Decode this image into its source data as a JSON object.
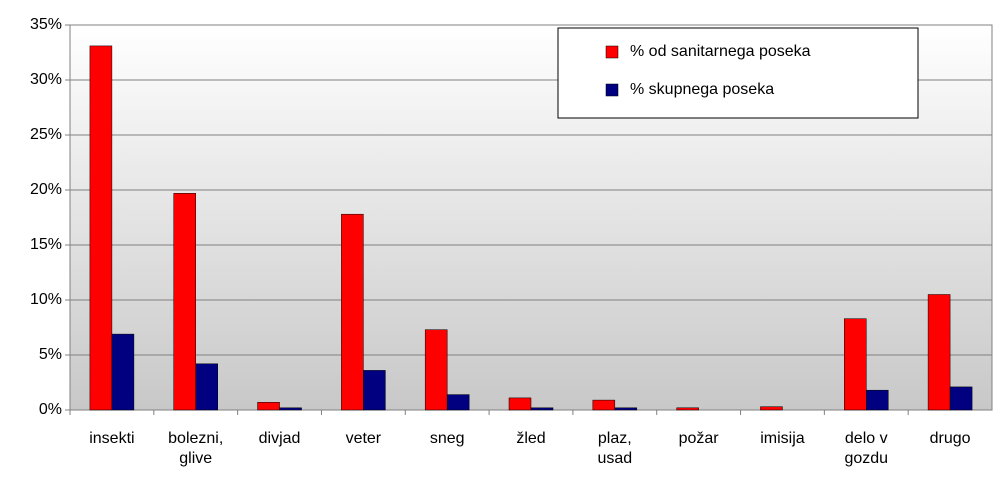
{
  "chart_data": {
    "type": "bar",
    "categories": [
      "insekti",
      "bolezni, glive",
      "divjad",
      "veter",
      "sneg",
      "žled",
      "plaz, usad",
      "požar",
      "imisija",
      "delo v gozdu",
      "drugo"
    ],
    "series": [
      {
        "name": "% od sanitarnega poseka",
        "color": "#ff0000",
        "values": [
          33.1,
          19.7,
          0.7,
          17.8,
          7.3,
          1.1,
          0.9,
          0.2,
          0.3,
          8.3,
          10.5
        ]
      },
      {
        "name": "% skupnega poseka",
        "color": "#000080",
        "values": [
          6.9,
          4.2,
          0.2,
          3.6,
          1.4,
          0.2,
          0.2,
          0.0,
          0.0,
          1.8,
          2.1
        ]
      }
    ],
    "ylim": [
      0,
      35
    ],
    "yticks": [
      {
        "value": 0,
        "label": "0%"
      },
      {
        "value": 5,
        "label": "5%"
      },
      {
        "value": 10,
        "label": "10%"
      },
      {
        "value": 15,
        "label": "15%"
      },
      {
        "value": 20,
        "label": "20%"
      },
      {
        "value": 25,
        "label": "25%"
      },
      {
        "value": 30,
        "label": "30%"
      },
      {
        "value": 35,
        "label": "35%"
      }
    ],
    "grid": true,
    "legend": "upper right"
  }
}
